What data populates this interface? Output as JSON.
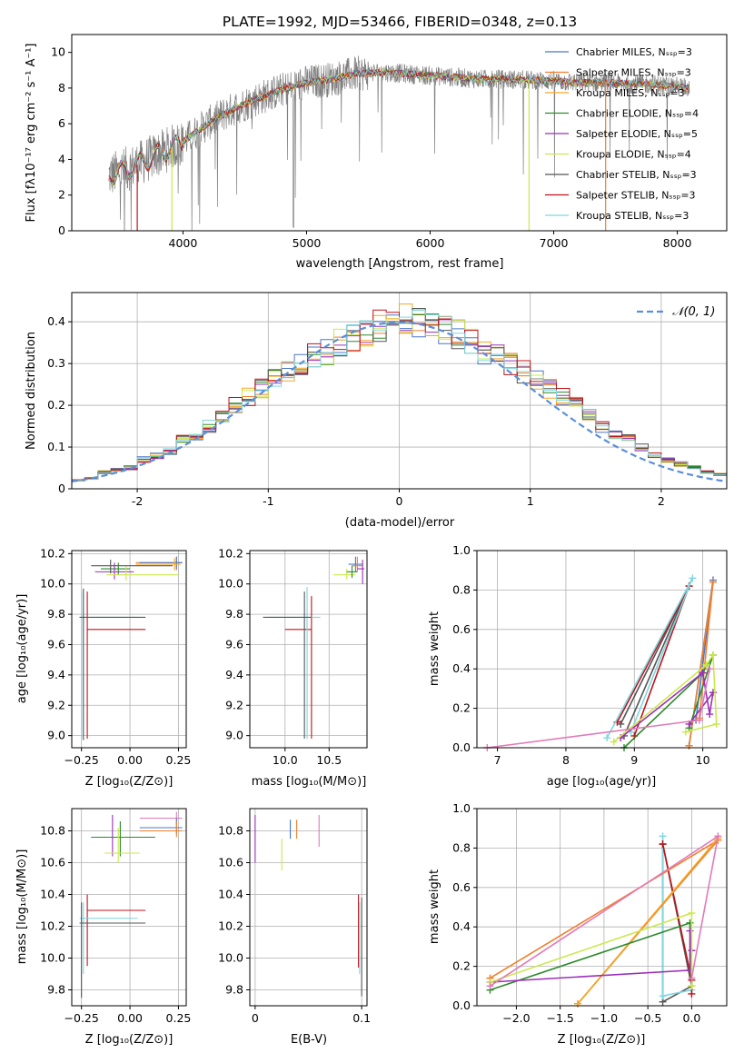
{
  "chart_data": [
    {
      "id": "spectrum",
      "type": "line",
      "title": "PLATE=1992, MJD=53466, FIBERID=0348, z=0.13",
      "xlabel": "wavelength [Angstrom, rest frame]",
      "ylabel": "Flux [fλ10⁻¹⁷ erg cm⁻² s⁻¹ A⁻¹]",
      "xlim": [
        3100,
        8400
      ],
      "ylim": [
        0,
        11
      ],
      "xticks": [
        4000,
        5000,
        6000,
        7000,
        8000
      ],
      "yticks": [
        0,
        2,
        4,
        6,
        8,
        10
      ],
      "grid": false,
      "legend_position": "top-right",
      "data_envelope": {
        "x": [
          3400,
          3600,
          3800,
          4000,
          4200,
          4400,
          4600,
          4800,
          5000,
          5200,
          5400,
          5600,
          5800,
          6000,
          6200,
          6400,
          6600,
          6800,
          7000,
          7200,
          7400,
          7600,
          7800,
          8000,
          8100
        ],
        "y": [
          3.1,
          3.6,
          4.3,
          5.0,
          6.0,
          6.8,
          7.4,
          7.9,
          8.3,
          8.5,
          8.8,
          8.9,
          8.8,
          8.7,
          8.6,
          8.5,
          8.5,
          8.45,
          8.4,
          8.3,
          8.3,
          8.25,
          8.2,
          8.1,
          8.0
        ]
      },
      "series": [
        {
          "name": "Chabrier MILES, N_SSP=3",
          "color": "#4a77c8"
        },
        {
          "name": "Salpeter MILES, N_SSP=3",
          "color": "#f07f2b"
        },
        {
          "name": "Kroupa MILES, N_SSP=3",
          "color": "#f5a623"
        },
        {
          "name": "Chabrier ELODIE, N_SSP=4",
          "color": "#2c8a2c"
        },
        {
          "name": "Salpeter ELODIE, N_SSP=5",
          "color": "#9b30b8"
        },
        {
          "name": "Kroupa ELODIE, N_SSP=4",
          "color": "#cbe84a"
        },
        {
          "name": "Chabrier STELIB, N_SSP=3",
          "color": "#555555"
        },
        {
          "name": "Salpeter STELIB, N_SSP=3",
          "color": "#c0121a"
        },
        {
          "name": "Kroupa STELIB, N_SSP=3",
          "color": "#7fd6e0"
        }
      ]
    },
    {
      "id": "residuals",
      "type": "line",
      "xlabel": "(data-model)/error",
      "ylabel": "Normed distribution",
      "xlim": [
        -2.5,
        2.5
      ],
      "ylim": [
        0,
        0.47
      ],
      "xticks": [
        -2,
        -1,
        0,
        1,
        2
      ],
      "yticks": [
        0.0,
        0.1,
        0.2,
        0.3,
        0.4
      ],
      "grid": true,
      "legend_position": "top-right",
      "legend": "𝒩(0, 1)",
      "normal_curve": {
        "mean": 0,
        "sigma": 1,
        "color": "#5b8fd9"
      },
      "histogram_bin_width": 0.1,
      "histogram_centers": [
        -2.45,
        -2.35,
        -2.25,
        -2.15,
        -2.05,
        -1.95,
        -1.85,
        -1.75,
        -1.65,
        -1.55,
        -1.45,
        -1.35,
        -1.25,
        -1.15,
        -1.05,
        -0.95,
        -0.85,
        -0.75,
        -0.65,
        -0.55,
        -0.45,
        -0.35,
        -0.25,
        -0.15,
        -0.05,
        0.05,
        0.15,
        0.25,
        0.35,
        0.45,
        0.55,
        0.65,
        0.75,
        0.85,
        0.95,
        1.05,
        1.15,
        1.25,
        1.35,
        1.45,
        1.55,
        1.65,
        1.75,
        1.85,
        1.95,
        2.05,
        2.15,
        2.25,
        2.35,
        2.45
      ],
      "histogram_values": [
        0.02,
        0.025,
        0.04,
        0.045,
        0.05,
        0.07,
        0.08,
        0.09,
        0.12,
        0.13,
        0.15,
        0.17,
        0.2,
        0.22,
        0.24,
        0.26,
        0.28,
        0.3,
        0.32,
        0.33,
        0.35,
        0.36,
        0.37,
        0.39,
        0.4,
        0.41,
        0.4,
        0.39,
        0.38,
        0.37,
        0.35,
        0.33,
        0.32,
        0.3,
        0.28,
        0.26,
        0.24,
        0.22,
        0.2,
        0.18,
        0.15,
        0.13,
        0.12,
        0.1,
        0.08,
        0.07,
        0.06,
        0.05,
        0.04,
        0.035
      ]
    },
    {
      "id": "age-vs-Z",
      "type": "scatter",
      "xlabel": "Z [log₁₀(Z/Z⊙)]",
      "ylabel": "age  [log₁₀(age/yr)]",
      "xlim": [
        -0.3,
        0.29
      ],
      "ylim": [
        8.92,
        10.22
      ],
      "xticks": [
        -0.25,
        0.0,
        0.25
      ],
      "yticks": [
        9.0,
        9.2,
        9.4,
        9.6,
        9.8,
        10.0,
        10.2
      ],
      "xtick_labels": [
        "−0.25",
        "0.00",
        "0.25"
      ],
      "ytick_labels": [
        "9.0",
        "9.2",
        "9.4",
        "9.6",
        "9.8",
        "10.0",
        "10.2"
      ],
      "grid": true,
      "errorbars": [
        {
          "series": 7,
          "x": -0.22,
          "x_lo": -0.22,
          "x_hi": 0.08,
          "y": 9.7,
          "y_lo": 8.98,
          "y_hi": 9.95
        },
        {
          "series": 8,
          "x": -0.25,
          "x_lo": -0.25,
          "x_hi": 0.04,
          "y": 9.78,
          "y_lo": 8.98,
          "y_hi": 9.95
        },
        {
          "series": 6,
          "x": -0.24,
          "x_lo": -0.26,
          "x_hi": 0.08,
          "y": 9.78,
          "y_lo": 8.97,
          "y_hi": 9.97
        },
        {
          "series": 1,
          "x": 0.24,
          "x_lo": 0.03,
          "x_hi": 0.27,
          "y": 10.14,
          "y_lo": 10.09,
          "y_hi": 10.18
        },
        {
          "series": 0,
          "x": 0.24,
          "x_lo": 0.05,
          "x_hi": 0.27,
          "y": 10.14,
          "y_lo": 10.1,
          "y_hi": 10.18
        },
        {
          "series": 2,
          "x": 0.23,
          "x_lo": 0.03,
          "x_hi": 0.26,
          "y": 10.13,
          "y_lo": 10.09,
          "y_hi": 10.17
        },
        {
          "series": 3,
          "x": -0.06,
          "x_lo": -0.15,
          "x_hi": 0.0,
          "y": 10.1,
          "y_lo": 10.06,
          "y_hi": 10.14
        },
        {
          "series": 4,
          "x": -0.08,
          "x_lo": -0.18,
          "x_hi": 0.02,
          "y": 10.08,
          "y_lo": 10.03,
          "y_hi": 10.14
        },
        {
          "series": 5,
          "x": -0.02,
          "x_lo": -0.12,
          "x_hi": 0.25,
          "y": 10.06,
          "y_lo": 10.02,
          "y_hi": 10.12
        },
        {
          "series": 6,
          "x": -0.1,
          "x_lo": -0.2,
          "x_hi": 0.22,
          "y": 10.12,
          "y_lo": 10.07,
          "y_hi": 10.16
        }
      ]
    },
    {
      "id": "age-vs-mass",
      "type": "scatter",
      "xlabel": "mass [log₁₀(M/M⊙)]",
      "ylabel": "",
      "xlim": [
        9.6,
        10.93
      ],
      "ylim": [
        8.92,
        10.22
      ],
      "xticks": [
        10.0,
        10.5
      ],
      "yticks": [
        9.0,
        9.2,
        9.4,
        9.6,
        9.8,
        10.0,
        10.2
      ],
      "xtick_labels": [
        "10.0",
        "10.5"
      ],
      "ytick_labels": [
        "9.0",
        "9.2",
        "9.4",
        "9.6",
        "9.8",
        "10.0",
        "10.2"
      ],
      "grid": true,
      "errorbars": [
        {
          "series": 7,
          "x": 10.3,
          "x_lo": 10.0,
          "x_hi": 10.3,
          "y": 9.7,
          "y_lo": 8.98,
          "y_hi": 9.92
        },
        {
          "series": 8,
          "x": 10.25,
          "x_lo": 9.8,
          "x_hi": 10.4,
          "y": 9.78,
          "y_lo": 8.98,
          "y_hi": 9.98
        },
        {
          "series": 6,
          "x": 10.22,
          "x_lo": 9.75,
          "x_hi": 10.3,
          "y": 9.78,
          "y_lo": 8.98,
          "y_hi": 9.95
        },
        {
          "series": 0,
          "x": 10.8,
          "x_lo": 10.72,
          "x_hi": 10.88,
          "y": 10.13,
          "y_lo": 10.08,
          "y_hi": 10.18
        },
        {
          "series": 1,
          "x": 10.82,
          "x_lo": 10.76,
          "x_hi": 10.88,
          "y": 10.12,
          "y_lo": 10.08,
          "y_hi": 10.18
        },
        {
          "series": 4,
          "x": 10.88,
          "x_lo": 10.82,
          "x_hi": 10.9,
          "y": 10.1,
          "y_lo": 10.0,
          "y_hi": 10.16
        },
        {
          "series": 5,
          "x": 10.7,
          "x_lo": 10.55,
          "x_hi": 10.8,
          "y": 10.06,
          "y_lo": 10.03,
          "y_hi": 10.1
        },
        {
          "series": 3,
          "x": 10.76,
          "x_lo": 10.7,
          "x_hi": 10.82,
          "y": 10.08,
          "y_lo": 10.04,
          "y_hi": 10.12
        }
      ]
    },
    {
      "id": "weight-vs-age",
      "type": "line",
      "xlabel": "age  [log₁₀(age/yr)]",
      "ylabel": "mass weight",
      "xlim": [
        6.7,
        10.35
      ],
      "ylim": [
        0,
        1.0
      ],
      "xticks": [
        7,
        8,
        9,
        10
      ],
      "yticks": [
        0.0,
        0.2,
        0.4,
        0.6,
        0.8,
        1.0
      ],
      "xtick_labels": [
        "7",
        "8",
        "9",
        "10"
      ],
      "ytick_labels": [
        "0.0",
        "0.2",
        "0.4",
        "0.6",
        "0.8",
        "1.0"
      ],
      "grid": true,
      "series": [
        {
          "series": 6,
          "x": [
            8.8,
            9.8,
            8.85
          ],
          "y": [
            0.12,
            0.82,
            0.06
          ]
        },
        {
          "series": 7,
          "x": [
            8.75,
            9.8,
            9.0
          ],
          "y": [
            0.13,
            0.82,
            0.06
          ]
        },
        {
          "series": 8,
          "x": [
            8.6,
            9.85,
            8.95
          ],
          "y": [
            0.05,
            0.86,
            0.08
          ]
        },
        {
          "series": 0,
          "x": [
            9.8,
            10.15,
            9.9
          ],
          "y": [
            0.01,
            0.85,
            0.14
          ]
        },
        {
          "series": 1,
          "x": [
            9.8,
            10.15,
            9.95
          ],
          "y": [
            0.01,
            0.84,
            0.15
          ]
        },
        {
          "series": 3,
          "x": [
            8.85,
            10.0,
            10.15,
            9.8
          ],
          "y": [
            0.0,
            0.38,
            0.47,
            0.1
          ]
        },
        {
          "series": 4,
          "x": [
            8.8,
            10.0,
            10.1,
            10.15,
            9.8
          ],
          "y": [
            0.05,
            0.38,
            0.17,
            0.28,
            0.12
          ]
        },
        {
          "series": 5,
          "x": [
            8.7,
            10.05,
            10.15,
            10.2,
            9.75
          ],
          "y": [
            0.03,
            0.42,
            0.47,
            0.12,
            0.08
          ]
        },
        {
          "series": 9,
          "x": [
            6.85,
            9.95,
            10.1
          ],
          "y": [
            0.0,
            0.14,
            0.4
          ]
        }
      ]
    },
    {
      "id": "mass-vs-Z",
      "type": "scatter",
      "xlabel": "Z [log₁₀(Z/Z⊙)]",
      "ylabel": "mass [log₁₀(M/M⊙)]",
      "xlim": [
        -0.3,
        0.29
      ],
      "ylim": [
        9.7,
        10.94
      ],
      "xticks": [
        -0.25,
        0.0,
        0.25
      ],
      "yticks": [
        9.8,
        10.0,
        10.2,
        10.4,
        10.6,
        10.8
      ],
      "xtick_labels": [
        "−0.25",
        "0.00",
        "0.25"
      ],
      "ytick_labels": [
        "9.8",
        "10.0",
        "10.2",
        "10.4",
        "10.6",
        "10.8"
      ],
      "grid": true,
      "errorbars": [
        {
          "series": 7,
          "x": -0.22,
          "x_lo": -0.22,
          "x_hi": 0.08,
          "y": 10.3,
          "y_lo": 9.95,
          "y_hi": 10.4
        },
        {
          "series": 8,
          "x": -0.24,
          "x_lo": -0.26,
          "x_hi": 0.04,
          "y": 10.25,
          "y_lo": 9.9,
          "y_hi": 10.35
        },
        {
          "series": 6,
          "x": -0.25,
          "x_lo": -0.26,
          "x_hi": 0.08,
          "y": 10.22,
          "y_lo": 9.75,
          "y_hi": 10.35
        },
        {
          "series": 9,
          "x": 0.24,
          "x_lo": 0.05,
          "x_hi": 0.27,
          "y": 10.88,
          "y_lo": 10.84,
          "y_hi": 10.92
        },
        {
          "series": 0,
          "x": 0.24,
          "x_lo": 0.05,
          "x_hi": 0.27,
          "y": 10.82,
          "y_lo": 10.78,
          "y_hi": 10.88
        },
        {
          "series": 1,
          "x": 0.24,
          "x_lo": 0.05,
          "x_hi": 0.27,
          "y": 10.8,
          "y_lo": 10.76,
          "y_hi": 10.86
        },
        {
          "series": 4,
          "x": -0.09,
          "x_lo": -0.2,
          "x_hi": 0.02,
          "y": 10.76,
          "y_lo": 10.64,
          "y_hi": 10.9
        },
        {
          "series": 3,
          "x": -0.05,
          "x_lo": -0.2,
          "x_hi": 0.13,
          "y": 10.76,
          "y_lo": 10.64,
          "y_hi": 10.86
        },
        {
          "series": 5,
          "x": -0.06,
          "x_lo": -0.13,
          "x_hi": 0.05,
          "y": 10.66,
          "y_lo": 10.6,
          "y_hi": 10.82
        }
      ]
    },
    {
      "id": "mass-vs-EBV",
      "type": "scatter",
      "xlabel": "E(B-V)",
      "ylabel": "",
      "xlim": [
        -0.005,
        0.105
      ],
      "ylim": [
        9.7,
        10.94
      ],
      "xticks": [
        0.0,
        0.1
      ],
      "yticks": [
        9.8,
        10.0,
        10.2,
        10.4,
        10.6,
        10.8
      ],
      "xtick_labels": [
        "0",
        "0.1"
      ],
      "ytick_labels": [
        "9.8",
        "10.0",
        "10.2",
        "10.4",
        "10.6",
        "10.8"
      ],
      "grid": true,
      "errorbars": [
        {
          "series": 4,
          "x": 0.0,
          "y": 10.75,
          "y_lo": 10.6,
          "y_hi": 10.9
        },
        {
          "series": 5,
          "x": 0.025,
          "y": 10.65,
          "y_lo": 10.55,
          "y_hi": 10.75
        },
        {
          "series": 0,
          "x": 0.033,
          "y": 10.8,
          "y_lo": 10.75,
          "y_hi": 10.87
        },
        {
          "series": 1,
          "x": 0.039,
          "y": 10.81,
          "y_lo": 10.75,
          "y_hi": 10.87
        },
        {
          "series": 9,
          "x": 0.06,
          "y": 10.78,
          "y_lo": 10.7,
          "y_hi": 10.9
        },
        {
          "series": 7,
          "x": 0.097,
          "y": 10.0,
          "y_lo": 9.94,
          "y_hi": 10.4
        },
        {
          "series": 8,
          "x": 0.098,
          "y": 10.2,
          "y_lo": 9.9,
          "y_hi": 10.35
        },
        {
          "series": 6,
          "x": 0.1,
          "y": 10.0,
          "y_lo": 9.76,
          "y_hi": 10.38
        }
      ]
    },
    {
      "id": "weight-vs-Z",
      "type": "line",
      "xlabel": "Z [log₁₀(Z/Z⊙)]",
      "ylabel": "mass weight",
      "xlim": [
        -2.45,
        0.4
      ],
      "ylim": [
        0,
        1.0
      ],
      "xticks": [
        -2.0,
        -1.5,
        -1.0,
        -0.5,
        0.0
      ],
      "yticks": [
        0.0,
        0.2,
        0.4,
        0.6,
        0.8,
        1.0
      ],
      "xtick_labels": [
        "−2.0",
        "−1.5",
        "−1.0",
        "−0.5",
        "0.0"
      ],
      "ytick_labels": [
        "0.0",
        "0.2",
        "0.4",
        "0.6",
        "0.8",
        "1.0"
      ],
      "grid": true,
      "series": [
        {
          "series": 6,
          "x": [
            -0.33,
            -0.33,
            0.0,
            -0.33
          ],
          "y": [
            0.82,
            0.02,
            0.1,
            0.82
          ]
        },
        {
          "series": 8,
          "x": [
            -0.33,
            -0.33,
            0.0
          ],
          "y": [
            0.86,
            0.05,
            0.08
          ]
        },
        {
          "series": 7,
          "x": [
            -0.33,
            0.0,
            0.0
          ],
          "y": [
            0.82,
            0.13,
            0.06
          ]
        },
        {
          "series": 1,
          "x": [
            -1.3,
            0.3,
            -2.3
          ],
          "y": [
            0.01,
            0.84,
            0.14
          ]
        },
        {
          "series": 2,
          "x": [
            -1.3,
            0.3
          ],
          "y": [
            0.01,
            0.85
          ]
        },
        {
          "series": 3,
          "x": [
            -2.3,
            -0.02,
            0.0
          ],
          "y": [
            0.08,
            0.42,
            0.1
          ]
        },
        {
          "series": 4,
          "x": [
            -2.3,
            -0.02,
            -0.02,
            0.0
          ],
          "y": [
            0.12,
            0.18,
            0.38,
            0.28
          ]
        },
        {
          "series": 5,
          "x": [
            -2.3,
            0.0,
            0.0
          ],
          "y": [
            0.12,
            0.47,
            0.1
          ]
        },
        {
          "series": 9,
          "x": [
            -2.3,
            0.3,
            0.0
          ],
          "y": [
            0.1,
            0.86,
            0.14
          ]
        }
      ]
    }
  ],
  "colors": {
    "c_chabrier_miles": "#4a77c8",
    "c_salpeter_miles": "#f07f2b",
    "c_kroupa_miles": "#f5a623",
    "c_chabrier_elodie": "#2c8a2c",
    "c_salpeter_elodie": "#9b30b8",
    "c_kroupa_elodie": "#cbe84a",
    "c_chabrier_stelib": "#555555",
    "c_salpeter_stelib": "#c0121a",
    "c_kroupa_stelib": "#7fd6e0",
    "c_extra_pink": "#e27ab8",
    "spectrum_data": "#7f7f7f",
    "grid": "#b0b0b0"
  }
}
